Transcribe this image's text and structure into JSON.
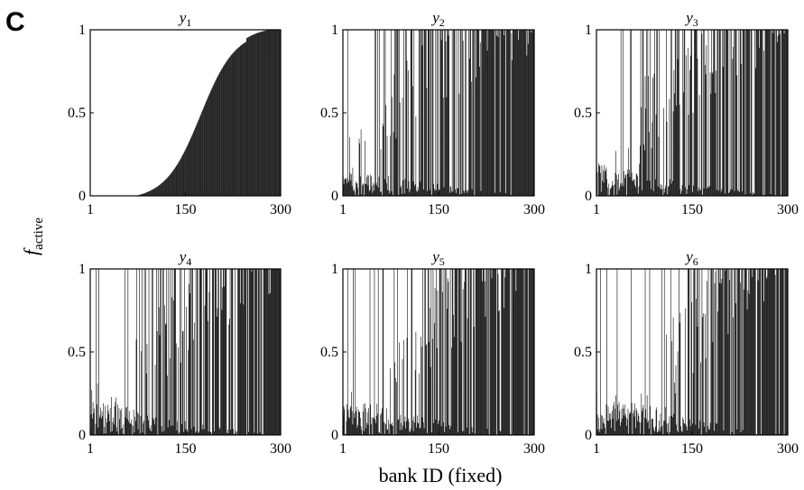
{
  "panel_letter": "C",
  "ylabel": {
    "main": "f",
    "sub": "active"
  },
  "xlabel": "bank ID (fixed)",
  "chart_data": [
    {
      "type": "bar",
      "title_var": "y",
      "title_sub": "1",
      "x_ticks": [
        "1",
        "150",
        "300"
      ],
      "y_ticks": [
        "0",
        "0.5",
        "1"
      ],
      "xlim": [
        1,
        300
      ],
      "ylim": [
        0,
        1
      ],
      "bar_count": 300,
      "profile": "sorted-sigmoid",
      "color": "#1a1a1a"
    },
    {
      "type": "bar",
      "title_var": "y",
      "title_sub": "2",
      "x_ticks": [
        "1",
        "150",
        "300"
      ],
      "y_ticks": [
        "0",
        "0.5",
        "1"
      ],
      "xlim": [
        1,
        300
      ],
      "ylim": [
        0,
        1
      ],
      "bar_count": 300,
      "profile": "noisy",
      "color": "#1a1a1a"
    },
    {
      "type": "bar",
      "title_var": "y",
      "title_sub": "3",
      "x_ticks": [
        "1",
        "150",
        "300"
      ],
      "y_ticks": [
        "0",
        "0.5",
        "1"
      ],
      "xlim": [
        1,
        300
      ],
      "ylim": [
        0,
        1
      ],
      "bar_count": 300,
      "profile": "noisy",
      "color": "#1a1a1a"
    },
    {
      "type": "bar",
      "title_var": "y",
      "title_sub": "4",
      "x_ticks": [
        "1",
        "150",
        "300"
      ],
      "y_ticks": [
        "0",
        "0.5",
        "1"
      ],
      "xlim": [
        1,
        300
      ],
      "ylim": [
        0,
        1
      ],
      "bar_count": 300,
      "profile": "noisy",
      "color": "#1a1a1a"
    },
    {
      "type": "bar",
      "title_var": "y",
      "title_sub": "5",
      "x_ticks": [
        "1",
        "150",
        "300"
      ],
      "y_ticks": [
        "0",
        "0.5",
        "1"
      ],
      "xlim": [
        1,
        300
      ],
      "ylim": [
        0,
        1
      ],
      "bar_count": 300,
      "profile": "noisy",
      "color": "#1a1a1a"
    },
    {
      "type": "bar",
      "title_var": "y",
      "title_sub": "6",
      "x_ticks": [
        "1",
        "150",
        "300"
      ],
      "y_ticks": [
        "0",
        "0.5",
        "1"
      ],
      "xlim": [
        1,
        300
      ],
      "ylim": [
        0,
        1
      ],
      "bar_count": 300,
      "profile": "noisy",
      "color": "#1a1a1a"
    }
  ]
}
